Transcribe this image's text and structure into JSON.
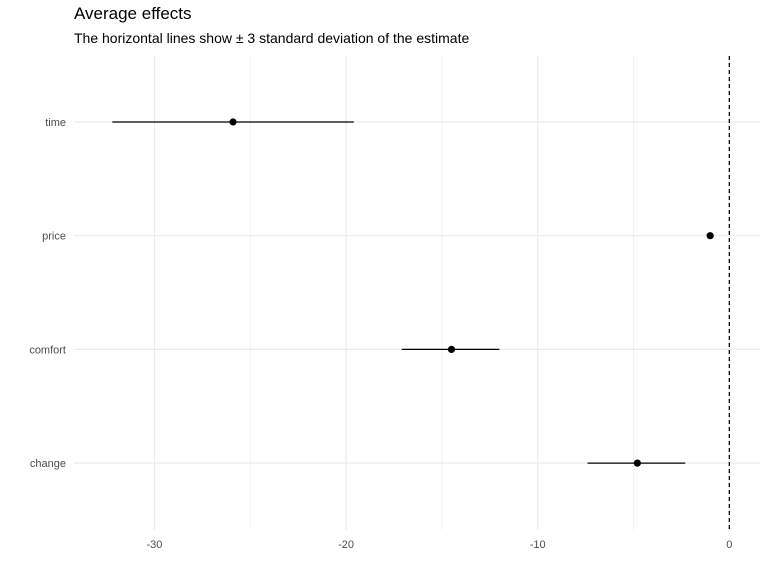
{
  "chart_data": {
    "type": "scatter",
    "title": "Average effects",
    "subtitle": "The horizontal lines show ± 3 standard deviation of the estimate",
    "xlabel": "",
    "ylabel": "",
    "categories": [
      "time",
      "price",
      "comfort",
      "change"
    ],
    "points": [
      {
        "label": "time",
        "estimate": -25.9,
        "lower": -32.2,
        "upper": -19.6
      },
      {
        "label": "price",
        "estimate": -1.0,
        "lower": -1.1,
        "upper": -0.9
      },
      {
        "label": "comfort",
        "estimate": -14.5,
        "lower": -17.1,
        "upper": -12.0
      },
      {
        "label": "change",
        "estimate": -4.8,
        "lower": -7.4,
        "upper": -2.3
      }
    ],
    "xlim": [
      -34.2,
      1.6
    ],
    "xticks": [
      -30,
      -20,
      -10,
      0
    ],
    "xtick_labels": [
      "-30",
      "-20",
      "-10",
      "0"
    ],
    "reference_line_x": 0,
    "grid": true,
    "colors": {
      "points": "#000000",
      "grid": "#ebebeb",
      "tick_text": "#4d4d4d"
    }
  }
}
